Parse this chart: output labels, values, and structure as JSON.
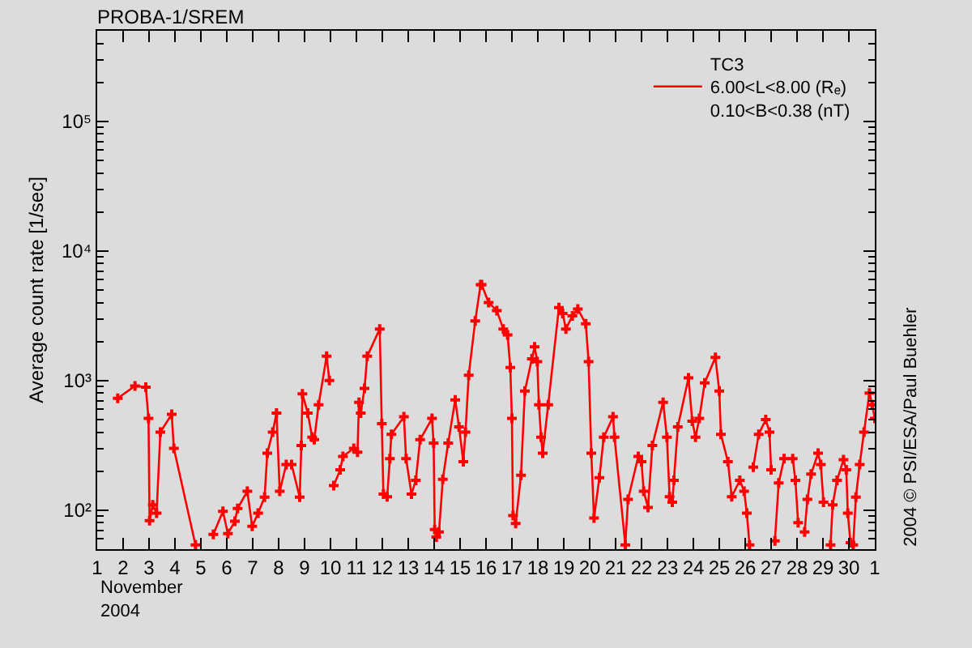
{
  "chart_data": {
    "type": "line",
    "title": "PROBA-1/SREM",
    "ylabel": "Average count rate [1/sec]",
    "xlabel": "November\n2004",
    "annotations": [
      "2004 © PSI/ESA/Paul Buehler"
    ],
    "x": [
      "2004-11-01T19:00",
      "2004-11-02T11:00",
      "2004-11-02T21:00",
      "2004-11-02T23:30",
      "2004-11-03T00:30",
      "2004-11-03T03:30",
      "2004-11-03T07:00",
      "2004-11-03T10:30",
      "2004-11-03T21:00",
      "2004-11-03T23:00",
      "2004-11-04T19:00",
      "2004-11-05T00:00",
      "2004-11-05T11:30",
      "2004-11-05T20:24",
      "2004-11-06T01:00",
      "2004-11-06T07:30",
      "2004-11-06T10:00",
      "2004-11-06T19:00",
      "2004-11-06T23:30",
      "2004-11-07T05:00",
      "2004-11-07T11:00",
      "2004-11-07T13:30",
      "2004-11-07T18:30",
      "2004-11-07T22:00",
      "2004-11-08T01:00",
      "2004-11-08T07:00",
      "2004-11-08T12:00",
      "2004-11-08T19:30",
      "2004-11-08T21:00",
      "2004-11-08T22:00",
      "2004-11-09T03:00",
      "2004-11-09T07:00",
      "2004-11-09T09:00",
      "2004-11-09T13:00",
      "2004-11-09T20:24",
      "2004-11-09T23:00",
      "2004-11-10T00:00",
      "2004-11-10T03:00",
      "2004-11-10T09:00",
      "2004-11-10T11:30",
      "2004-11-10T21:36",
      "2004-11-11T01:00",
      "2004-11-11T02:24",
      "2004-11-11T04:00",
      "2004-11-11T07:30",
      "2004-11-11T10:00",
      "2004-11-11T21:36",
      "2004-11-11T23:30",
      "2004-11-12T01:00",
      "2004-11-12T04:30",
      "2004-11-12T07:00",
      "2004-11-12T08:24",
      "2004-11-12T20:00",
      "2004-11-12T22:00",
      "2004-11-13T03:00",
      "2004-11-13T07:00",
      "2004-11-13T11:00",
      "2004-11-13T22:00",
      "2004-11-13T23:30",
      "2004-11-14T00:30",
      "2004-11-14T02:00",
      "2004-11-14T04:30",
      "2004-11-14T08:00",
      "2004-11-14T13:00",
      "2004-11-14T19:30",
      "2004-11-14T23:00",
      "2004-11-15T03:00",
      "2004-11-15T05:00",
      "2004-11-15T08:00",
      "2004-11-15T14:00",
      "2004-11-15T19:00",
      "2004-11-15T20:00",
      "2004-11-16T02:24",
      "2004-11-16T10:00",
      "2004-11-16T16:00",
      "2004-11-16T20:00",
      "2004-11-16T22:30",
      "2004-11-17T00:00",
      "2004-11-17T01:00",
      "2004-11-17T03:30",
      "2004-11-17T08:24",
      "2004-11-17T12:00",
      "2004-11-17T18:30",
      "2004-11-17T21:00",
      "2004-11-17T23:30",
      "2004-11-18T01:00",
      "2004-11-18T03:00",
      "2004-11-18T04:30",
      "2004-11-18T09:36",
      "2004-11-18T19:30",
      "2004-11-18T23:00",
      "2004-11-19T02:00",
      "2004-11-19T08:00",
      "2004-11-19T13:00",
      "2004-11-19T20:24",
      "2004-11-19T23:00",
      "2004-11-20T01:30",
      "2004-11-20T04:00",
      "2004-11-20T09:00",
      "2004-11-20T13:00",
      "2004-11-20T21:36",
      "2004-11-20T23:00",
      "2004-11-21T09:00",
      "2004-11-21T11:30",
      "2004-11-21T21:00",
      "2004-11-22T00:00",
      "2004-11-22T02:00",
      "2004-11-22T06:00",
      "2004-11-22T10:00",
      "2004-11-22T20:00",
      "2004-11-22T23:30",
      "2004-11-23T02:00",
      "2004-11-23T04:30",
      "2004-11-23T06:00",
      "2004-11-23T09:36",
      "2004-11-23T19:30",
      "2004-11-23T23:00",
      "2004-11-24T02:00",
      "2004-11-24T05:30",
      "2004-11-24T10:30",
      "2004-11-24T20:24",
      "2004-11-25T00:00",
      "2004-11-25T01:30",
      "2004-11-25T08:00",
      "2004-11-25T11:30",
      "2004-11-25T19:00",
      "2004-11-25T23:00",
      "2004-11-26T01:30",
      "2004-11-26T04:00",
      "2004-11-26T05:00",
      "2004-11-26T07:30",
      "2004-11-26T12:30",
      "2004-11-26T19:00",
      "2004-11-26T22:30",
      "2004-11-27T00:00",
      "2004-11-27T01:00",
      "2004-11-27T03:30",
      "2004-11-27T07:00",
      "2004-11-27T12:00",
      "2004-11-27T20:00",
      "2004-11-27T22:30",
      "2004-11-28T01:00",
      "2004-11-28T03:00",
      "2004-11-28T07:00",
      "2004-11-28T09:36",
      "2004-11-28T13:00",
      "2004-11-28T19:30",
      "2004-11-28T22:00",
      "2004-11-29T00:30",
      "2004-11-29T02:00",
      "2004-11-29T07:00",
      "2004-11-29T09:00",
      "2004-11-29T13:00",
      "2004-11-29T19:00",
      "2004-11-29T21:36",
      "2004-11-29T23:00",
      "2004-11-30T01:30",
      "2004-11-30T04:00",
      "2004-11-30T06:30",
      "2004-11-30T10:00",
      "2004-11-30T14:00",
      "2004-11-30T19:00",
      "2004-11-30T21:36",
      "2004-12-01T00:00"
    ],
    "series": [
      {
        "name": "TC3\n6.00<L<8.00 (Rₑ)\n0.10<B<0.38 (nT)",
        "color": "#ff0000",
        "values": [
          730,
          910,
          890,
          510,
          83,
          110,
          95,
          400,
          550,
          300,
          54,
          null,
          65,
          98,
          66,
          82,
          103,
          140,
          75,
          95,
          126,
          275,
          400,
          560,
          140,
          225,
          225,
          126,
          315,
          790,
          560,
          365,
          350,
          650,
          1540,
          1000,
          null,
          155,
          205,
          260,
          300,
          280,
          680,
          560,
          870,
          1540,
          2500,
          465,
          133,
          127,
          250,
          385,
          525,
          250,
          133,
          170,
          350,
          510,
          330,
          71,
          62,
          68,
          173,
          330,
          710,
          440,
          237,
          400,
          1100,
          2880,
          5500,
          5500,
          4000,
          3470,
          2500,
          2250,
          1260,
          510,
          91,
          79,
          186,
          830,
          1470,
          1820,
          1400,
          650,
          365,
          275,
          650,
          3650,
          3300,
          2500,
          3160,
          3570,
          2740,
          1400,
          275,
          87,
          178,
          365,
          525,
          365,
          54,
          121,
          260,
          237,
          140,
          105,
          315,
          680,
          365,
          127,
          115,
          170,
          440,
          1050,
          485,
          365,
          510,
          960,
          1510,
          830,
          385,
          237,
          127,
          170,
          140,
          95,
          54,
          null,
          215,
          385,
          500,
          400,
          205,
          null,
          58,
          162,
          250,
          250,
          170,
          80,
          null,
          68,
          121,
          190,
          275,
          225,
          115,
          null,
          54,
          110,
          170,
          245,
          205,
          95,
          56,
          54,
          126,
          225,
          400,
          800,
          650,
          510
        ]
      }
    ],
    "log": "y",
    "ylim": [
      50,
      500000
    ],
    "yticks": [
      {
        "value": 100,
        "label": "10²"
      },
      {
        "value": 1000,
        "label": "10³"
      },
      {
        "value": 10000,
        "label": "10⁴"
      },
      {
        "value": 100000,
        "label": "10⁵"
      }
    ],
    "xlim": [
      "2004-11-01",
      "2004-12-01"
    ],
    "xticks": [
      {
        "value": "2004-11-01",
        "label": "1"
      },
      {
        "value": "2004-11-02",
        "label": "2"
      },
      {
        "value": "2004-11-03",
        "label": "3"
      },
      {
        "value": "2004-11-04",
        "label": "4"
      },
      {
        "value": "2004-11-05",
        "label": "5"
      },
      {
        "value": "2004-11-06",
        "label": "6"
      },
      {
        "value": "2004-11-07",
        "label": "7"
      },
      {
        "value": "2004-11-08",
        "label": "8"
      },
      {
        "value": "2004-11-09",
        "label": "9"
      },
      {
        "value": "2004-11-10",
        "label": "10"
      },
      {
        "value": "2004-11-11",
        "label": "11"
      },
      {
        "value": "2004-11-12",
        "label": "12"
      },
      {
        "value": "2004-11-13",
        "label": "13"
      },
      {
        "value": "2004-11-14",
        "label": "14"
      },
      {
        "value": "2004-11-15",
        "label": "15"
      },
      {
        "value": "2004-11-16",
        "label": "16"
      },
      {
        "value": "2004-11-17",
        "label": "17"
      },
      {
        "value": "2004-11-18",
        "label": "18"
      },
      {
        "value": "2004-11-19",
        "label": "19"
      },
      {
        "value": "2004-11-20",
        "label": "20"
      },
      {
        "value": "2004-11-21",
        "label": "21"
      },
      {
        "value": "2004-11-22",
        "label": "22"
      },
      {
        "value": "2004-11-23",
        "label": "23"
      },
      {
        "value": "2004-11-24",
        "label": "24"
      },
      {
        "value": "2004-11-25",
        "label": "25"
      },
      {
        "value": "2004-11-26",
        "label": "26"
      },
      {
        "value": "2004-11-27",
        "label": "27"
      },
      {
        "value": "2004-11-28",
        "label": "28"
      },
      {
        "value": "2004-11-29",
        "label": "29"
      },
      {
        "value": "2004-11-30",
        "label": "30"
      },
      {
        "value": "2004-12-01",
        "label": "1"
      }
    ],
    "marker": "cross",
    "line_style": "solid",
    "grid": false,
    "legend": "top right"
  }
}
